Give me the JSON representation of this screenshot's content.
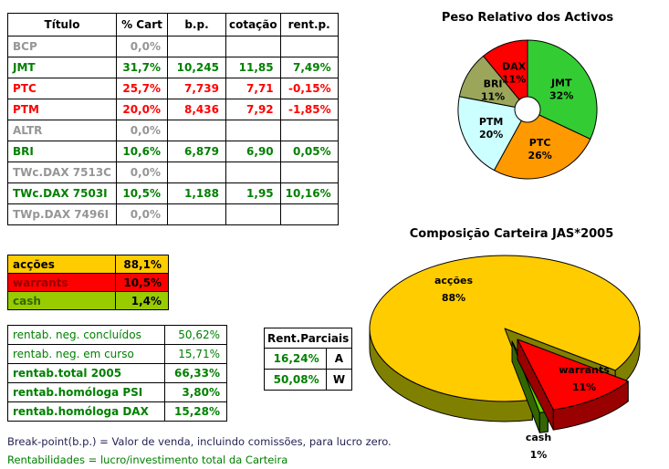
{
  "colors": {
    "positive": "#008000",
    "negative": "#FF0000",
    "inactive": "#969696"
  },
  "main_table": {
    "headers": [
      "Título",
      "% Cart",
      "b.p.",
      "cotação",
      "rent.p."
    ],
    "rows": [
      {
        "titulo": "BCP",
        "cart": "0,0%",
        "bp": "",
        "cot": "",
        "rent": "",
        "state": "inactive"
      },
      {
        "titulo": "JMT",
        "cart": "31,7%",
        "bp": "10,245",
        "cot": "11,85",
        "rent": "7,49%",
        "state": "pos"
      },
      {
        "titulo": "PTC",
        "cart": "25,7%",
        "bp": "7,739",
        "cot": "7,71",
        "rent": "-0,15%",
        "state": "neg"
      },
      {
        "titulo": "PTM",
        "cart": "20,0%",
        "bp": "8,436",
        "cot": "7,92",
        "rent": "-1,85%",
        "state": "neg"
      },
      {
        "titulo": "ALTR",
        "cart": "0,0%",
        "bp": "",
        "cot": "",
        "rent": "",
        "state": "inactive"
      },
      {
        "titulo": "BRI",
        "cart": "10,6%",
        "bp": "6,879",
        "cot": "6,90",
        "rent": "0,05%",
        "state": "pos"
      },
      {
        "titulo": "TWc.DAX 7513C",
        "cart": "0,0%",
        "bp": "",
        "cot": "",
        "rent": "",
        "state": "inactive"
      },
      {
        "titulo": "TWc.DAX 7503I",
        "cart": "10,5%",
        "bp": "1,188",
        "cot": "1,95",
        "rent": "10,16%",
        "state": "pos"
      },
      {
        "titulo": "TWp.DAX 7496I",
        "cart": "0,0%",
        "bp": "",
        "cot": "",
        "rent": "",
        "state": "inactive"
      }
    ]
  },
  "composition_table": {
    "rows": [
      {
        "label": "acções",
        "value": "88,1%",
        "bg": "#FFCC00",
        "label_color": "#000000"
      },
      {
        "label": "warrants",
        "value": "10,5%",
        "bg": "#FF0000",
        "label_color": "#990000"
      },
      {
        "label": "cash",
        "value": "1,4%",
        "bg": "#99CC00",
        "label_color": "#336600"
      }
    ]
  },
  "rentab_table": {
    "rows": [
      {
        "label": "rentab. neg. concluídos",
        "value": "50,62%",
        "bold": false
      },
      {
        "label": "rentab. neg. em curso",
        "value": "15,71%",
        "bold": false
      },
      {
        "label": "rentab.total 2005",
        "value": "66,33%",
        "bold": true
      },
      {
        "label": "rentab.homóloga PSI",
        "value": "3,80%",
        "bold": true
      },
      {
        "label": "rentab.homóloga DAX",
        "value": "15,28%",
        "bold": true
      }
    ]
  },
  "parciais_table": {
    "title": "Rent.Parciais",
    "rows": [
      {
        "value": "16,24%",
        "code": "A"
      },
      {
        "value": "50,08%",
        "code": "W"
      }
    ]
  },
  "footnotes": [
    "Break-point(b.p.) = Valor de venda, incluindo comissões, para lucro zero.",
    "Rentabilidades = lucro/investimento total da Carteira"
  ],
  "chart_data": [
    {
      "type": "pie",
      "title": "Peso Relativo dos Activos",
      "donut": true,
      "legend_position": "none",
      "start_angle_deg": 0,
      "direction": "clockwise",
      "slices": [
        {
          "name": "JMT",
          "pct": 32,
          "color": "#33CC33"
        },
        {
          "name": "PTC",
          "pct": 26,
          "color": "#FF9900"
        },
        {
          "name": "PTM",
          "pct": 20,
          "color": "#CCFFFF"
        },
        {
          "name": "BRI",
          "pct": 11,
          "color": "#9BA65B"
        },
        {
          "name": "DAX",
          "pct": 11,
          "color": "#FF0000"
        }
      ]
    },
    {
      "type": "pie",
      "title": "Composição Carteira JAS*2005",
      "style": "3d-exploded",
      "legend_position": "none",
      "slices": [
        {
          "name": "acções",
          "pct": 88,
          "color": "#FFCC00",
          "side_color": "#808000"
        },
        {
          "name": "warrants",
          "pct": 11,
          "color": "#FF0000",
          "side_color": "#990000"
        },
        {
          "name": "cash",
          "pct": 1,
          "color": "#66CC00",
          "side_color": "#336600"
        }
      ]
    }
  ]
}
